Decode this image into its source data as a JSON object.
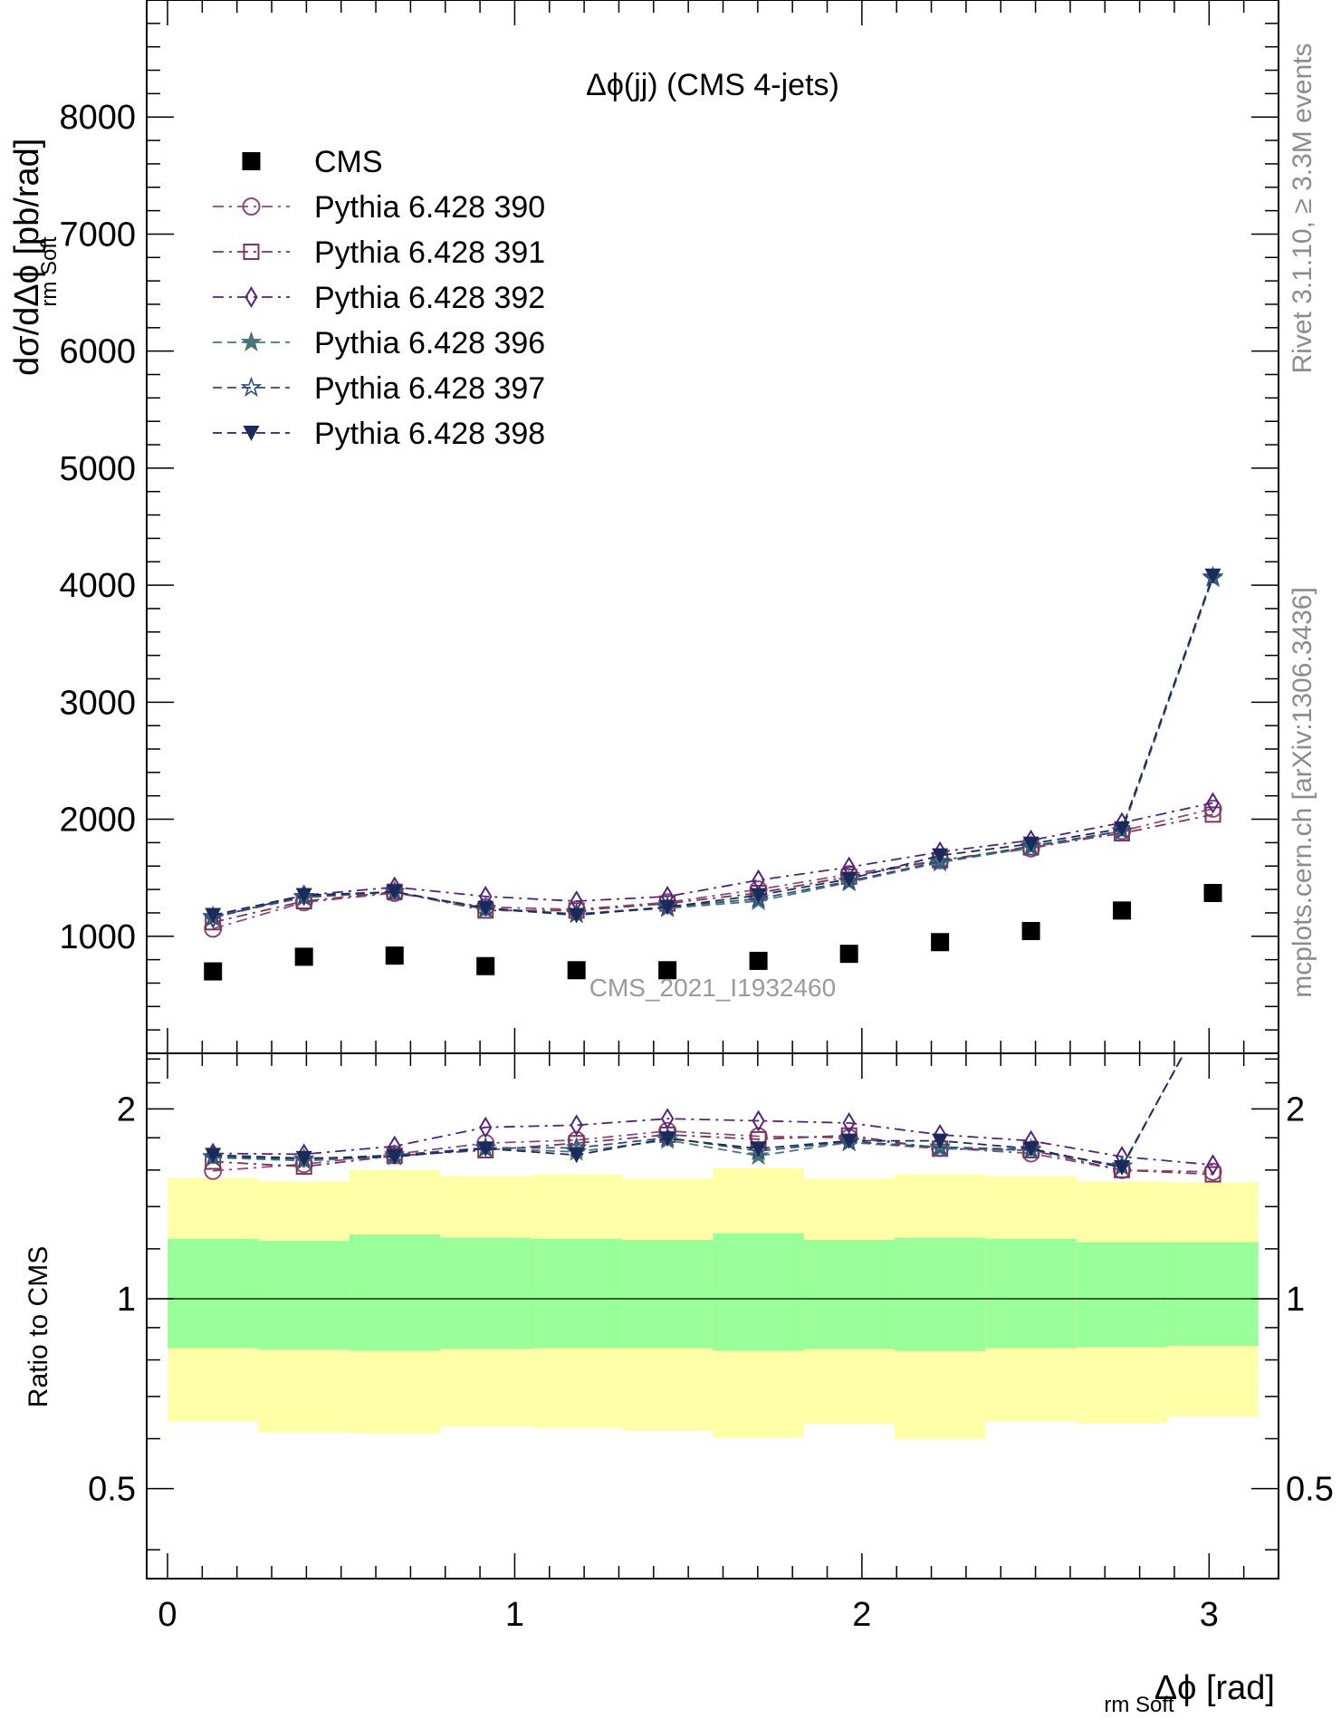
{
  "chart_data": [
    {
      "type": "line",
      "title": "Δϕ(jj) (CMS 4-jets)",
      "ylabel": "dσ/dΔϕ [pb/rad]",
      "ylabel_subscript": "rm Soft",
      "xlim": [
        -0.06,
        3.2
      ],
      "ylim": [
        0,
        9000
      ],
      "ytick_labels": [
        "1000",
        "2000",
        "3000",
        "4000",
        "5000",
        "6000",
        "7000",
        "8000"
      ],
      "x": [
        0.131,
        0.393,
        0.654,
        0.916,
        1.178,
        1.44,
        1.702,
        1.963,
        2.225,
        2.487,
        2.749,
        3.011
      ],
      "series": [
        {
          "name": "CMS",
          "marker": "square-filled",
          "color": "#000000",
          "values": [
            700,
            825,
            835,
            745,
            710,
            710,
            790,
            850,
            950,
            1045,
            1220,
            1370
          ]
        },
        {
          "name": "Pythia 6.428 390",
          "marker": "circle-open",
          "color": "#8b4a7e",
          "dash": "dashdot",
          "values": [
            1065,
            1290,
            1370,
            1250,
            1230,
            1290,
            1400,
            1530,
            1650,
            1750,
            1900,
            2090
          ]
        },
        {
          "name": "Pythia 6.428 391",
          "marker": "square-open",
          "color": "#7a3558",
          "dash": "dashdot",
          "values": [
            1120,
            1300,
            1380,
            1220,
            1220,
            1280,
            1370,
            1510,
            1650,
            1760,
            1880,
            2040
          ]
        },
        {
          "name": "Pythia 6.428 392",
          "marker": "diamond-open",
          "color": "#52237a",
          "dash": "dashdot",
          "values": [
            1160,
            1350,
            1420,
            1340,
            1300,
            1340,
            1480,
            1590,
            1720,
            1820,
            1970,
            2140
          ]
        },
        {
          "name": "Pythia 6.428 396",
          "marker": "star-filled",
          "color": "#4a7478",
          "dash": "dashed",
          "values": [
            1170,
            1330,
            1380,
            1230,
            1190,
            1240,
            1300,
            1460,
            1630,
            1760,
            1900,
            4060
          ]
        },
        {
          "name": "Pythia 6.428 397",
          "marker": "star-open",
          "color": "#2f4f7a",
          "dash": "dashed",
          "values": [
            1160,
            1340,
            1380,
            1240,
            1190,
            1250,
            1320,
            1470,
            1640,
            1770,
            1900,
            4070
          ]
        },
        {
          "name": "Pythia 6.428 398",
          "marker": "triangle-down-filled",
          "color": "#1b2a5a",
          "dash": "dashed",
          "values": [
            1180,
            1350,
            1380,
            1240,
            1180,
            1250,
            1350,
            1490,
            1690,
            1790,
            1920,
            4080
          ]
        }
      ],
      "watermark": "CMS_2021_I1932460"
    },
    {
      "type": "line",
      "ylabel": "Ratio to CMS",
      "xlabel": "Δϕ [rad]",
      "xlabel_subscript": "rm Soft",
      "xtick_labels": [
        "0",
        "1",
        "2",
        "3"
      ],
      "ytick_labels": [
        "0.5",
        "1",
        "2"
      ],
      "ylim": [
        0.36,
        2.45
      ],
      "yscale": "log",
      "x": [
        0.131,
        0.393,
        0.654,
        0.916,
        1.178,
        1.44,
        1.702,
        1.963,
        2.225,
        2.487,
        2.749,
        3.011
      ],
      "bins": [
        0,
        0.262,
        0.524,
        0.785,
        1.047,
        1.309,
        1.571,
        1.833,
        2.094,
        2.356,
        2.618,
        2.88,
        3.142
      ],
      "band_inner_lo": [
        0.835,
        0.83,
        0.828,
        0.833,
        0.835,
        0.835,
        0.828,
        0.833,
        0.826,
        0.835,
        0.838,
        0.842
      ],
      "band_inner_hi": [
        1.245,
        1.235,
        1.265,
        1.25,
        1.245,
        1.24,
        1.27,
        1.24,
        1.25,
        1.245,
        1.23,
        1.23
      ],
      "band_outer_lo": [
        0.64,
        0.615,
        0.612,
        0.628,
        0.624,
        0.618,
        0.603,
        0.633,
        0.6,
        0.64,
        0.635,
        0.65
      ],
      "band_outer_hi": [
        1.555,
        1.535,
        1.6,
        1.565,
        1.575,
        1.55,
        1.61,
        1.55,
        1.575,
        1.565,
        1.535,
        1.53
      ],
      "series": [
        {
          "name": "Pythia 6.428 390",
          "values": [
            1.595,
            1.635,
            1.695,
            1.765,
            1.785,
            1.845,
            1.81,
            1.8,
            1.735,
            1.7,
            1.6,
            1.59
          ]
        },
        {
          "name": "Pythia 6.428 391",
          "values": [
            1.65,
            1.62,
            1.685,
            1.72,
            1.765,
            1.82,
            1.79,
            1.815,
            1.73,
            1.72,
            1.6,
            1.575
          ]
        },
        {
          "name": "Pythia 6.428 392",
          "values": [
            1.7,
            1.695,
            1.745,
            1.87,
            1.885,
            1.93,
            1.915,
            1.9,
            1.82,
            1.78,
            1.68,
            1.63
          ]
        },
        {
          "name": "Pythia 6.428 396",
          "values": [
            1.675,
            1.655,
            1.68,
            1.73,
            1.71,
            1.785,
            1.685,
            1.77,
            1.73,
            1.72,
            1.625,
            2.96
          ]
        },
        {
          "name": "Pythia 6.428 397",
          "values": [
            1.68,
            1.665,
            1.69,
            1.735,
            1.735,
            1.8,
            1.715,
            1.775,
            1.74,
            1.725,
            1.62,
            2.97
          ]
        },
        {
          "name": "Pythia 6.428 398",
          "values": [
            1.69,
            1.67,
            1.68,
            1.73,
            1.69,
            1.795,
            1.73,
            1.78,
            1.78,
            1.73,
            1.615,
            2.98
          ]
        }
      ]
    }
  ],
  "side_text": {
    "top": "Rivet 3.1.10, ≥ 3.3M events",
    "bottom": "mcplots.cern.ch [arXiv:1306.3436]"
  }
}
